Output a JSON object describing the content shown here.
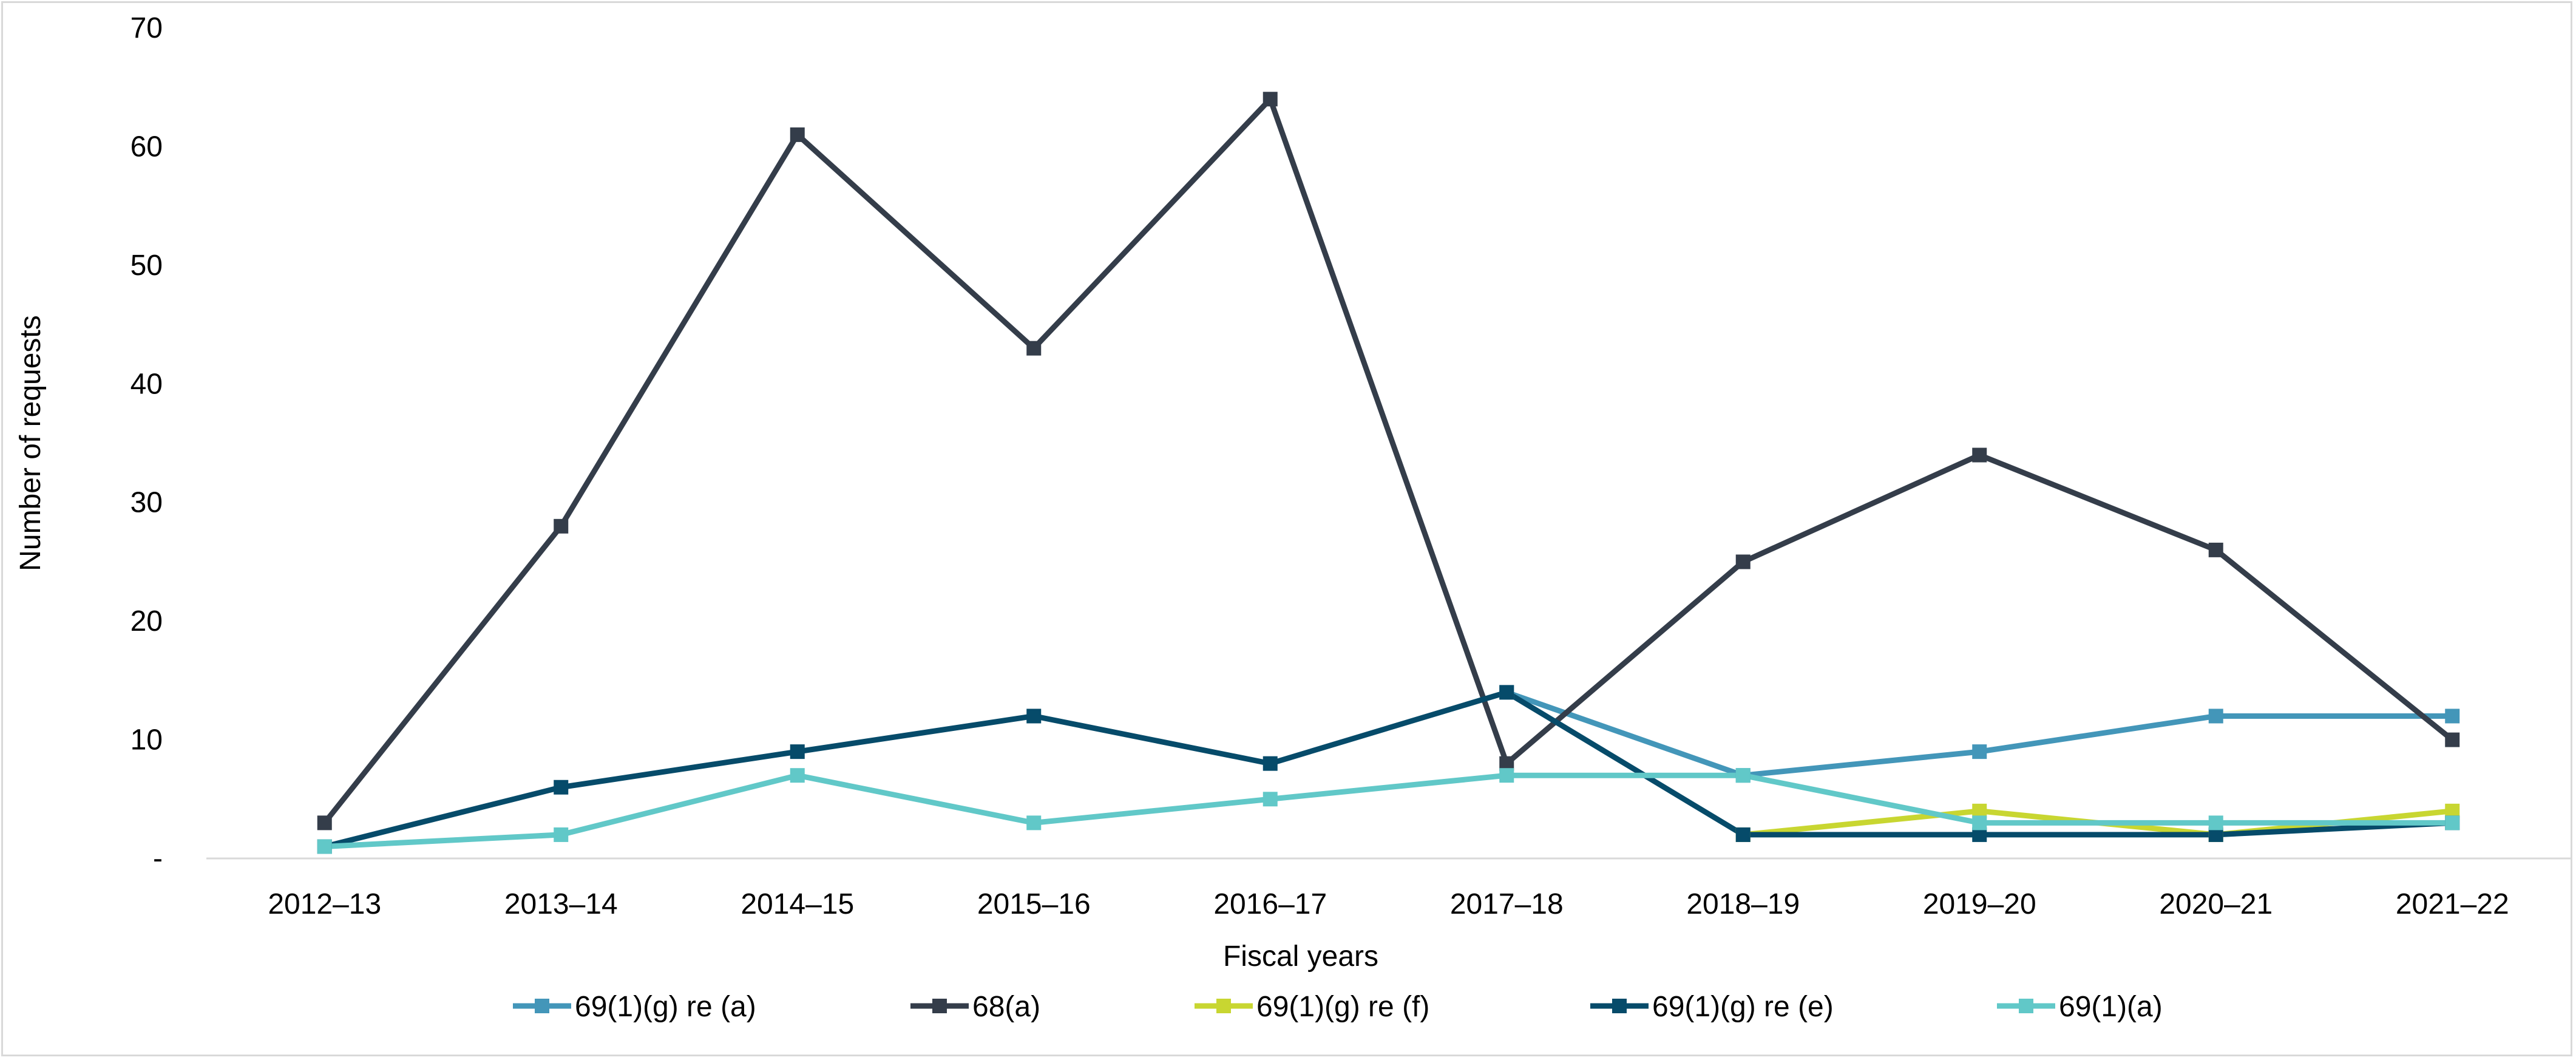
{
  "chart_data": {
    "type": "line",
    "title": "",
    "xlabel": "Fiscal years",
    "ylabel": "Number of requests",
    "ylim": [
      0,
      70
    ],
    "yticks": [
      0,
      10,
      20,
      30,
      40,
      50,
      60,
      70
    ],
    "ytick_labels": [
      "-",
      "10",
      "20",
      "30",
      "40",
      "50",
      "60",
      "70"
    ],
    "grid": false,
    "legend_position": "bottom",
    "categories": [
      "2012–13",
      "2013–14",
      "2014–15",
      "2015–16",
      "2016–17",
      "2017–18",
      "2018–19",
      "2019–20",
      "2020–21",
      "2021–22"
    ],
    "series": [
      {
        "name": "69(1)(g) re (a)",
        "color": "#4396b9",
        "marker": "square",
        "values": [
          null,
          null,
          null,
          null,
          null,
          14,
          7,
          9,
          12,
          12
        ]
      },
      {
        "name": "68(a)",
        "color": "#343d4a",
        "marker": "square",
        "values": [
          3,
          28,
          61,
          43,
          64,
          8,
          25,
          34,
          26,
          10
        ]
      },
      {
        "name": "69(1)(g) re (f)",
        "color": "#c8d631",
        "marker": "square",
        "values": [
          null,
          null,
          null,
          null,
          null,
          null,
          2,
          4,
          2,
          4
        ]
      },
      {
        "name": "69(1)(g) re (e)",
        "color": "#064b6a",
        "marker": "square",
        "values": [
          1,
          6,
          9,
          12,
          8,
          14,
          2,
          2,
          2,
          3
        ]
      },
      {
        "name": "69(1)(a)",
        "color": "#61c8c8",
        "marker": "square",
        "values": [
          1,
          2,
          7,
          3,
          5,
          7,
          7,
          3,
          3,
          3
        ]
      }
    ]
  }
}
